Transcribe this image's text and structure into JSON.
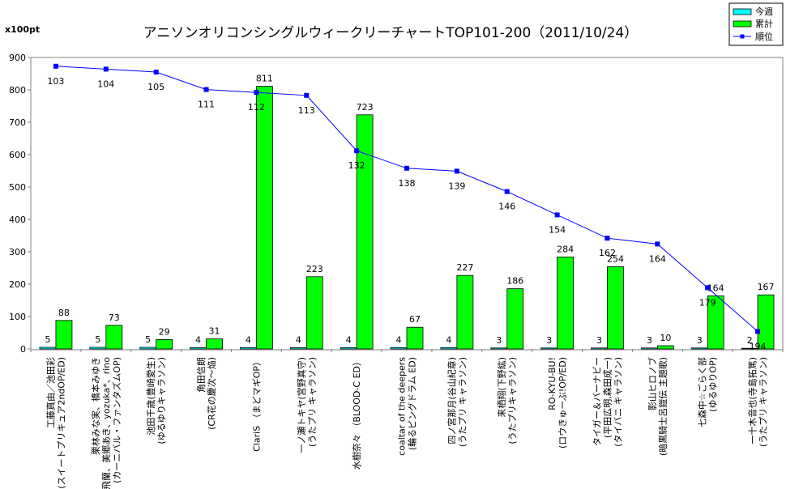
{
  "chart_data": {
    "type": "bar",
    "title": "アニソンオリコンシングルウィークリーチャートTOP101-200（2011/10/24）",
    "unit_label": "x100pt",
    "ylim": [
      0,
      900
    ],
    "yticks": [
      0,
      100,
      200,
      300,
      400,
      500,
      600,
      700,
      800,
      900
    ],
    "rank_range": [
      100,
      200
    ],
    "grid": false,
    "legend_position": "top-right",
    "categories": [
      [
        "工藤真由／池田彩",
        "(スイートプリキュア2ndOP/ED)"
      ],
      [
        "栗林みな実、橋本みゆき",
        "飛蘭、美郷あき、yozuka*、rino",
        "(カーニバル・ファンタズムOP)"
      ],
      [
        "池田千歳(豊崎愛生)",
        "(ゆるゆりキャラソン)"
      ],
      [
        "角田信朗",
        "(CR花の慶次～焔)"
      ],
      [
        "ClariS （まどマギOP）"
      ],
      [
        "一ノ瀬トキヤ(宮野真守)",
        "(うたプリ キャラソン)"
      ],
      [
        "水樹奈々 （BLOOD-C ED）"
      ],
      [
        "coaltar of the deepers",
        "(輪るピングドラム ED)"
      ],
      [
        "四ノ宮那月(谷山紀章)",
        "(うたプリ キャラソン)"
      ],
      [
        "来栖翔(下野紘)",
        "(うたプリキャラソン)"
      ],
      [
        "RO-KYU-BU!",
        "(ロウきゅーぶ!OP/ED)"
      ],
      [
        "タイガー＆バーナビー",
        "(平田広明,森田成一)",
        "(タイバニ キャラソン)"
      ],
      [
        "影山ヒロノブ",
        "(暗黒騎士呂鎧伝 主題歌)"
      ],
      [
        "七森中☆ごらく部",
        "(ゆるゆりOP)"
      ],
      [
        "一十木音也(寺島拓篤)",
        "(うたプリ キャラソン)"
      ]
    ],
    "series": [
      {
        "name": "今週",
        "color": "#00ffff",
        "values": [
          5,
          5,
          5,
          4,
          4,
          4,
          4,
          4,
          4,
          3,
          3,
          3,
          3,
          3,
          2
        ]
      },
      {
        "name": "累計",
        "color": "#00ff00",
        "values": [
          88,
          73,
          29,
          31,
          811,
          223,
          723,
          67,
          227,
          186,
          284,
          254,
          10,
          164,
          167
        ]
      },
      {
        "name": "順位",
        "color": "#0000ff",
        "type": "line",
        "values": [
          103,
          104,
          105,
          111,
          112,
          113,
          132,
          138,
          139,
          146,
          154,
          162,
          164,
          179,
          194
        ]
      }
    ]
  }
}
